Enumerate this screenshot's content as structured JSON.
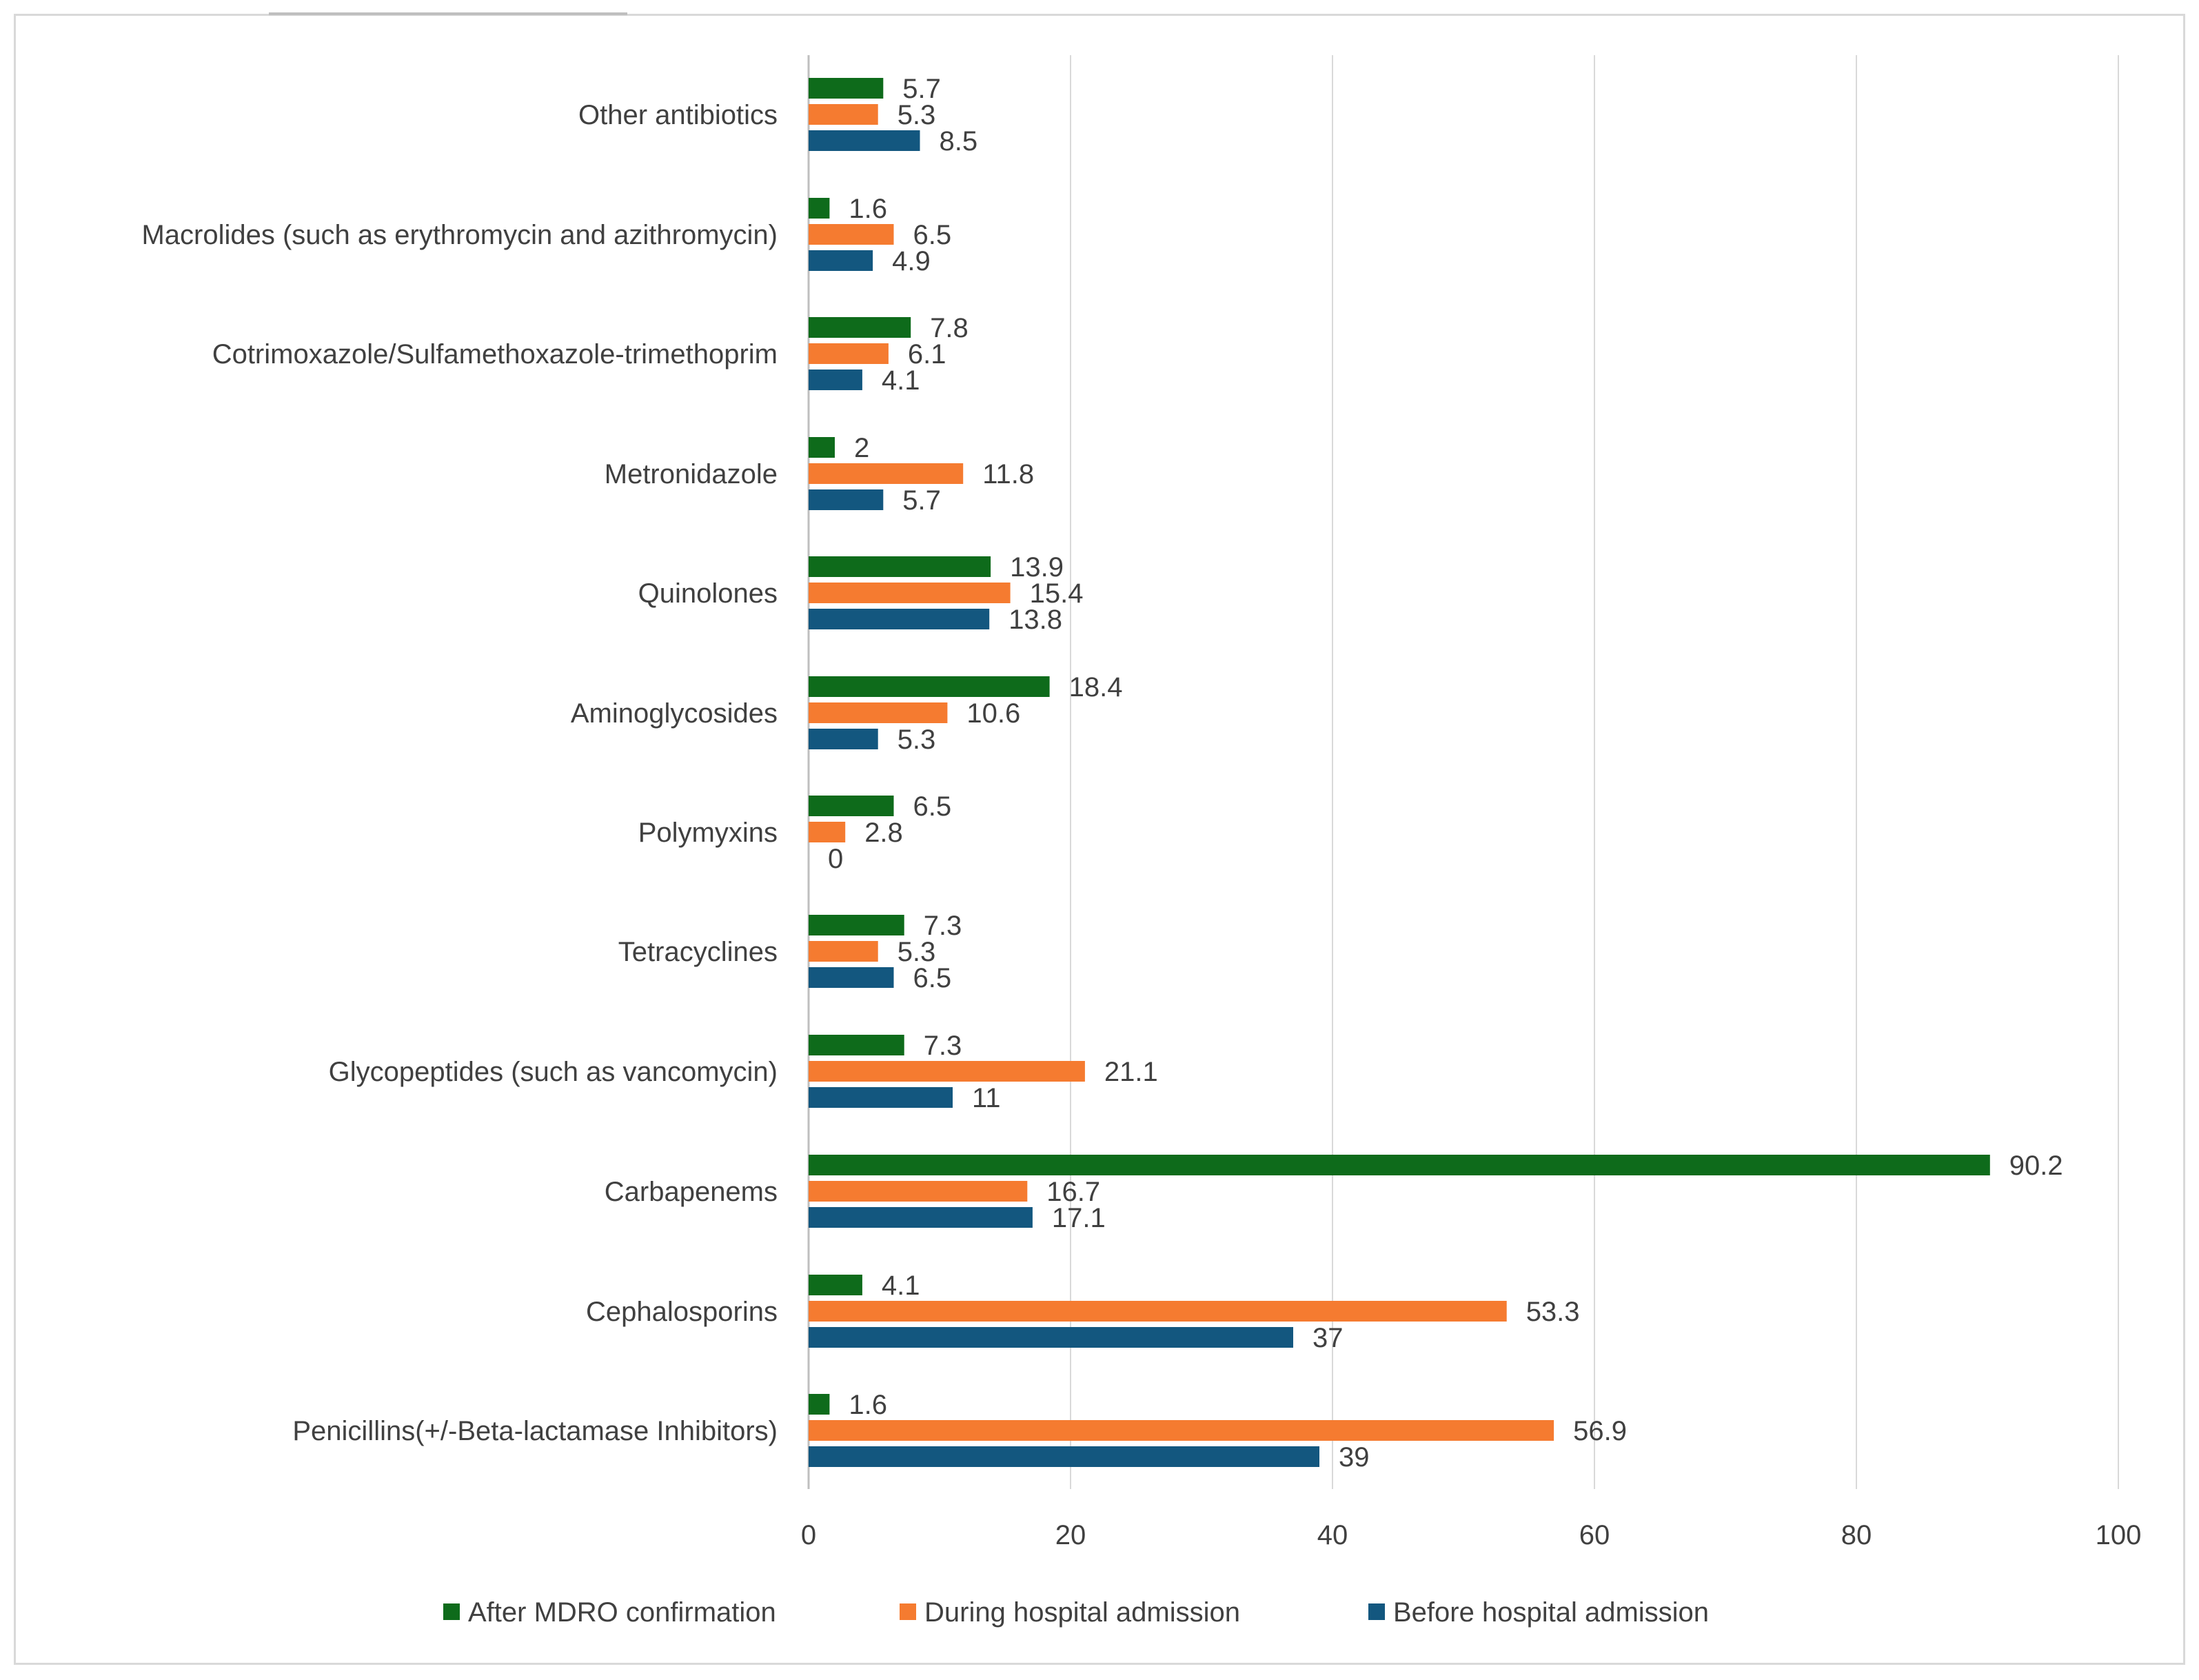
{
  "chart_data": {
    "type": "bar",
    "orientation": "horizontal",
    "title": "",
    "xlabel": "",
    "ylabel": "",
    "xlim": [
      0,
      100
    ],
    "xticks": [
      0,
      20,
      40,
      60,
      80,
      100
    ],
    "grid": true,
    "legend_position": "bottom",
    "categories": [
      "Other antibiotics",
      "Macrolides (such as erythromycin and azithromycin)",
      "Cotrimoxazole/Sulfamethoxazole-trimethoprim",
      "Metronidazole",
      "Quinolones",
      "Aminoglycosides",
      "Polymyxins",
      "Tetracyclines",
      "Glycopeptides (such as vancomycin)",
      "Carbapenems",
      "Cephalosporins",
      "Penicillins(+/-Beta-lactamase Inhibitors)"
    ],
    "series": [
      {
        "name": "After MDRO confirmation",
        "color": "#0e6b1b",
        "values": [
          5.7,
          1.6,
          7.8,
          2,
          13.9,
          18.4,
          6.5,
          7.3,
          7.3,
          90.2,
          4.1,
          1.6
        ],
        "labels": [
          "5.7",
          "1.6",
          "7.8",
          "2",
          "13.9",
          "18.4",
          "6.5",
          "7.3",
          "7.3",
          "90.2",
          "4.1",
          "1.6"
        ]
      },
      {
        "name": "During hospital admission",
        "color": "#f57b30",
        "values": [
          5.3,
          6.5,
          6.1,
          11.8,
          15.4,
          10.6,
          2.8,
          5.3,
          21.1,
          16.7,
          53.3,
          56.9
        ],
        "labels": [
          "5.3",
          "6.5",
          "6.1",
          "11.8",
          "15.4",
          "10.6",
          "2.8",
          "5.3",
          "21.1",
          "16.7",
          "53.3",
          "56.9"
        ]
      },
      {
        "name": "Before hospital admission",
        "color": "#13577f",
        "values": [
          8.5,
          4.9,
          4.1,
          5.7,
          13.8,
          5.3,
          0,
          6.5,
          11,
          17.1,
          37,
          39
        ],
        "labels": [
          "8.5",
          "4.9",
          "4.1",
          "5.7",
          "13.8",
          "5.3",
          "0",
          "6.5",
          "11",
          "17.1",
          "37",
          "39"
        ]
      }
    ]
  }
}
